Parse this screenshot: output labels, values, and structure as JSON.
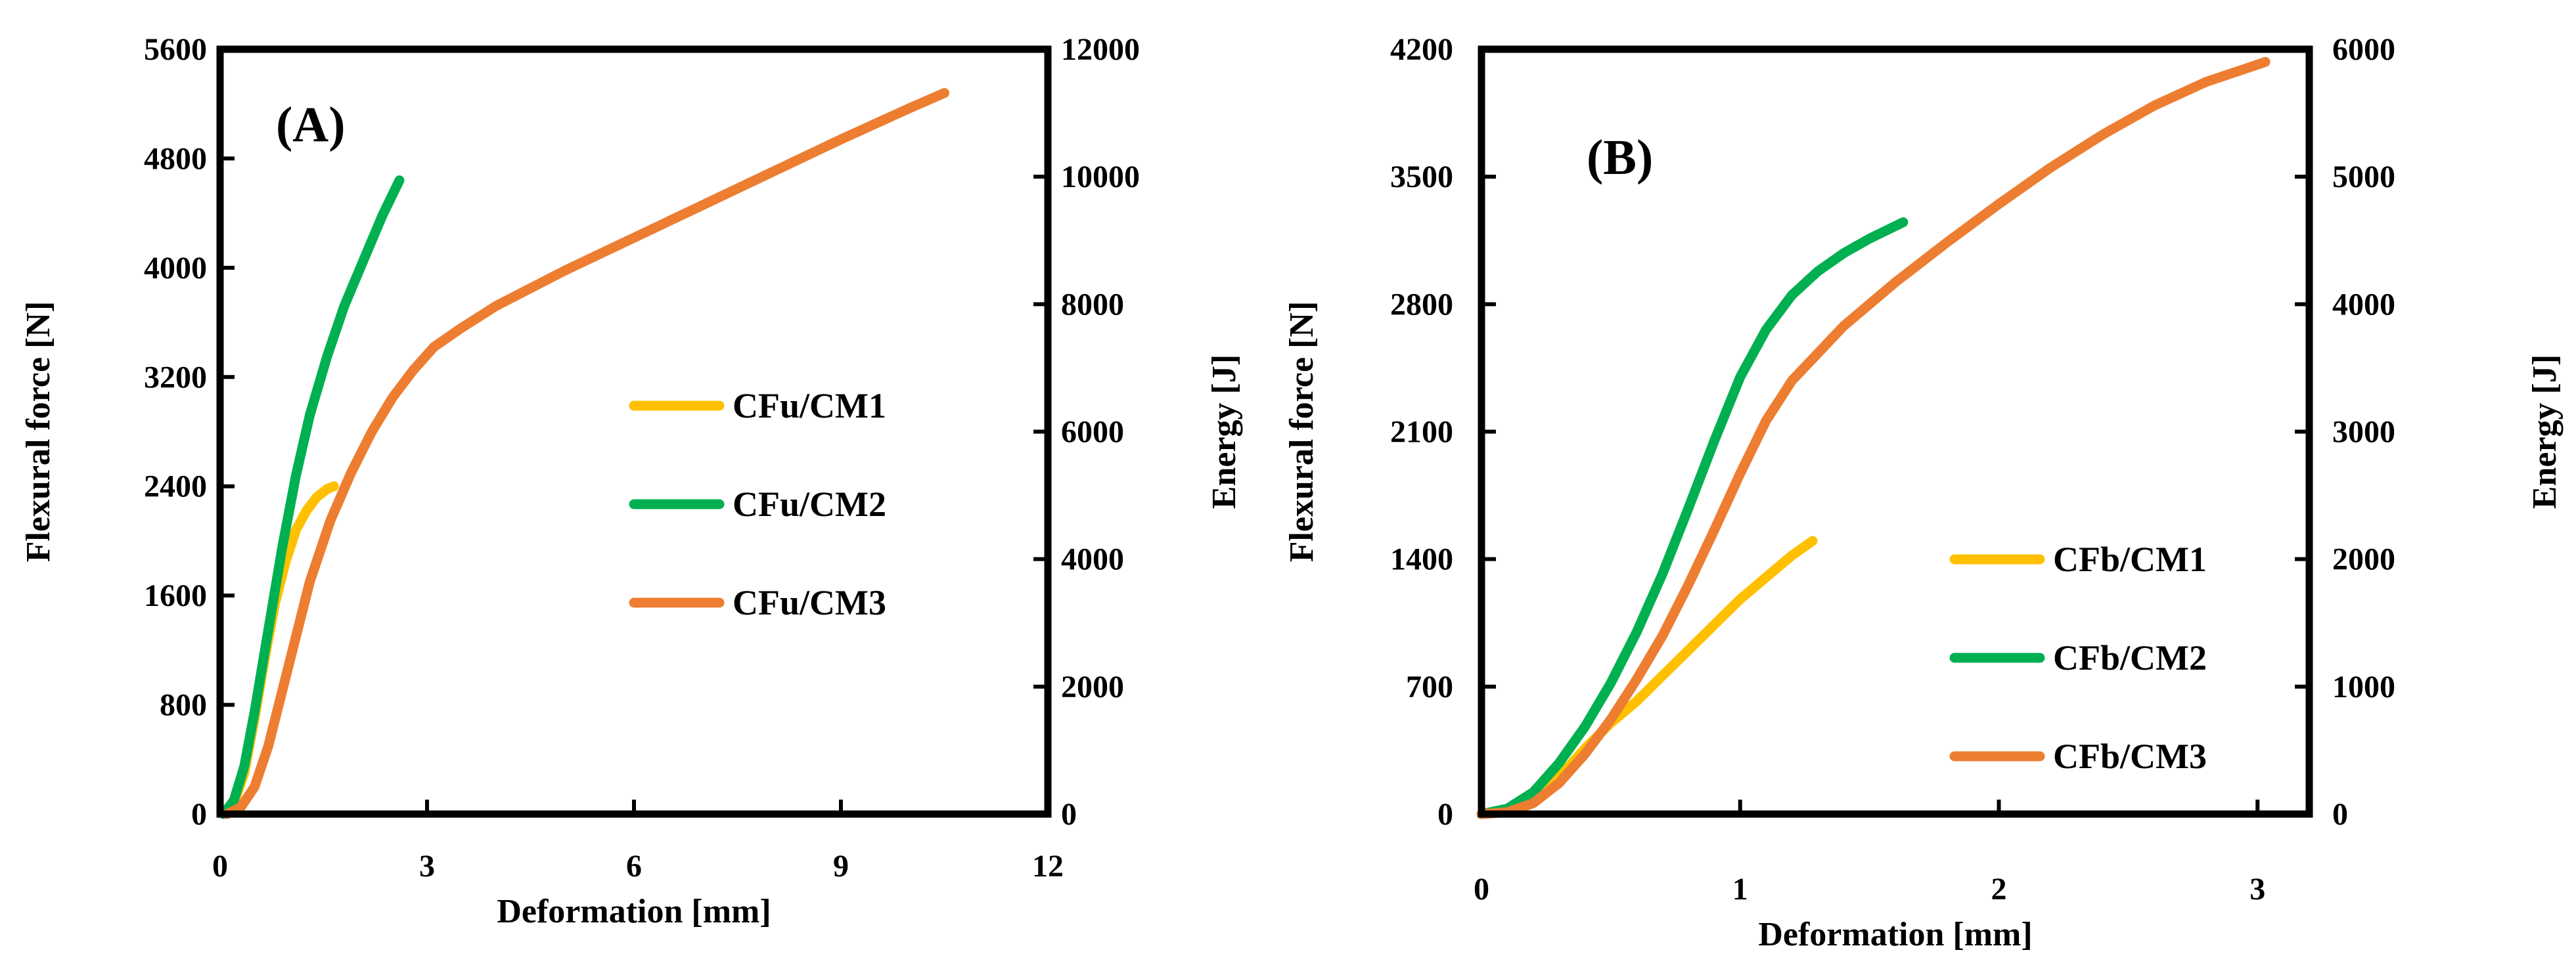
{
  "chart_data": [
    {
      "panel_label": "(A)",
      "type": "line",
      "xlabel": "Deformation [mm]",
      "ylabel_left": "Flexural force [N]",
      "ylabel_right": "Energy [J]",
      "xlim": [
        0,
        12
      ],
      "ylim_left": [
        0,
        5600
      ],
      "ylim_right": [
        0,
        12000
      ],
      "xticks": [
        "0",
        "3",
        "6",
        "9",
        "12"
      ],
      "yticks_left": [
        "0",
        "800",
        "1600",
        "2400",
        "3200",
        "4000",
        "4800",
        "5600"
      ],
      "yticks_right": [
        "0",
        "2000",
        "4000",
        "6000",
        "8000",
        "10000",
        "12000"
      ],
      "grid": false,
      "legend_position": "center-right",
      "series": [
        {
          "name": "CFu/CM1",
          "color": "#FFC000",
          "points": [
            [
              0.05,
              0
            ],
            [
              0.2,
              80
            ],
            [
              0.35,
              300
            ],
            [
              0.5,
              700
            ],
            [
              0.65,
              1150
            ],
            [
              0.8,
              1550
            ],
            [
              0.95,
              1850
            ],
            [
              1.1,
              2080
            ],
            [
              1.25,
              2220
            ],
            [
              1.4,
              2320
            ],
            [
              1.55,
              2380
            ],
            [
              1.65,
              2400
            ]
          ]
        },
        {
          "name": "CFu/CM2",
          "color": "#00B050",
          "points": [
            [
              0.05,
              0
            ],
            [
              0.2,
              100
            ],
            [
              0.35,
              350
            ],
            [
              0.5,
              750
            ],
            [
              0.7,
              1350
            ],
            [
              0.9,
              1950
            ],
            [
              1.1,
              2480
            ],
            [
              1.3,
              2920
            ],
            [
              1.55,
              3350
            ],
            [
              1.8,
              3720
            ],
            [
              2.1,
              4080
            ],
            [
              2.35,
              4380
            ],
            [
              2.6,
              4640
            ]
          ]
        },
        {
          "name": "CFu/CM3",
          "color": "#ED7D31",
          "points": [
            [
              0.1,
              0
            ],
            [
              0.3,
              50
            ],
            [
              0.5,
              200
            ],
            [
              0.7,
              500
            ],
            [
              0.9,
              900
            ],
            [
              1.1,
              1300
            ],
            [
              1.3,
              1700
            ],
            [
              1.6,
              2150
            ],
            [
              1.9,
              2500
            ],
            [
              2.2,
              2800
            ],
            [
              2.5,
              3050
            ],
            [
              2.8,
              3250
            ],
            [
              3.1,
              3420
            ],
            [
              3.5,
              3560
            ],
            [
              4.0,
              3720
            ],
            [
              5.0,
              3980
            ],
            [
              6.0,
              4220
            ],
            [
              7.0,
              4460
            ],
            [
              8.0,
              4700
            ],
            [
              9.0,
              4940
            ],
            [
              10.0,
              5170
            ],
            [
              10.5,
              5280
            ]
          ]
        }
      ]
    },
    {
      "panel_label": "(B)",
      "type": "line",
      "xlabel": "Deformation [mm]",
      "ylabel_left": "Flexural force [N]",
      "ylabel_right": "Energy [J]",
      "xlim": [
        0,
        3.2
      ],
      "ylim_left": [
        0,
        4200
      ],
      "ylim_right": [
        0,
        6000
      ],
      "xticks": [
        "0",
        "1",
        "2",
        "3"
      ],
      "yticks_left": [
        "0",
        "700",
        "1400",
        "2100",
        "2800",
        "3500",
        "4200"
      ],
      "yticks_right": [
        "0",
        "1000",
        "2000",
        "3000",
        "4000",
        "5000",
        "6000"
      ],
      "grid": false,
      "legend_position": "bottom-right",
      "series": [
        {
          "name": "CFb/CM1",
          "color": "#FFC000",
          "points": [
            [
              0,
              0
            ],
            [
              0.1,
              20
            ],
            [
              0.2,
              80
            ],
            [
              0.3,
              200
            ],
            [
              0.4,
              360
            ],
            [
              0.5,
              500
            ],
            [
              0.6,
              620
            ],
            [
              0.7,
              760
            ],
            [
              0.8,
              900
            ],
            [
              0.9,
              1040
            ],
            [
              1.0,
              1180
            ],
            [
              1.1,
              1300
            ],
            [
              1.2,
              1420
            ],
            [
              1.28,
              1500
            ]
          ]
        },
        {
          "name": "CFb/CM2",
          "color": "#00B050",
          "points": [
            [
              0,
              0
            ],
            [
              0.1,
              30
            ],
            [
              0.2,
              120
            ],
            [
              0.3,
              280
            ],
            [
              0.4,
              480
            ],
            [
              0.5,
              720
            ],
            [
              0.6,
              1000
            ],
            [
              0.7,
              1320
            ],
            [
              0.8,
              1680
            ],
            [
              0.9,
              2050
            ],
            [
              1.0,
              2400
            ],
            [
              1.1,
              2660
            ],
            [
              1.2,
              2850
            ],
            [
              1.3,
              2980
            ],
            [
              1.4,
              3080
            ],
            [
              1.5,
              3160
            ],
            [
              1.63,
              3250
            ]
          ]
        },
        {
          "name": "CFb/CM3",
          "color": "#ED7D31",
          "points": [
            [
              0,
              0
            ],
            [
              0.1,
              10
            ],
            [
              0.2,
              60
            ],
            [
              0.3,
              170
            ],
            [
              0.4,
              330
            ],
            [
              0.5,
              520
            ],
            [
              0.6,
              740
            ],
            [
              0.7,
              980
            ],
            [
              0.8,
              1260
            ],
            [
              0.9,
              1560
            ],
            [
              1.0,
              1870
            ],
            [
              1.1,
              2160
            ],
            [
              1.2,
              2380
            ],
            [
              1.4,
              2680
            ],
            [
              1.6,
              2920
            ],
            [
              1.8,
              3140
            ],
            [
              2.0,
              3350
            ],
            [
              2.2,
              3550
            ],
            [
              2.4,
              3730
            ],
            [
              2.6,
              3890
            ],
            [
              2.8,
              4020
            ],
            [
              3.03,
              4130
            ]
          ]
        }
      ]
    }
  ]
}
